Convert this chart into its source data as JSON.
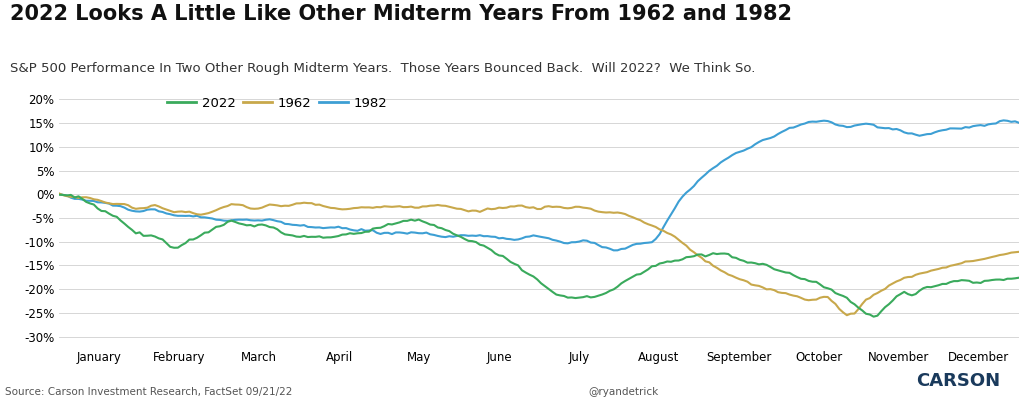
{
  "title": "2022 Looks A Little Like Other Midterm Years From 1962 and 1982",
  "subtitle": "S&P 500 Performance In Two Other Rough Midterm Years.  Those Years Bounced Back.  Will 2022?  We Think So.",
  "source": "Source: Carson Investment Research, FactSet 09/21/22",
  "twitter": "@ryandetrick",
  "background_color": "#ffffff",
  "plot_bg_color": "#ffffff",
  "grid_color": "#d0d0d0",
  "colors": {
    "2022": "#3aaa5c",
    "1962": "#c8a84b",
    "1982": "#3d9fd4"
  },
  "month_labels": [
    "January",
    "February",
    "March",
    "April",
    "May",
    "June",
    "July",
    "August",
    "September",
    "October",
    "November",
    "December"
  ],
  "ylim": [
    -0.32,
    0.22
  ],
  "yticks": [
    -0.3,
    -0.25,
    -0.2,
    -0.15,
    -0.1,
    -0.05,
    0.0,
    0.05,
    0.1,
    0.15,
    0.2
  ],
  "title_fontsize": 15,
  "subtitle_fontsize": 9.5,
  "axis_fontsize": 8.5,
  "legend_fontsize": 9.5,
  "line_width": 1.5
}
